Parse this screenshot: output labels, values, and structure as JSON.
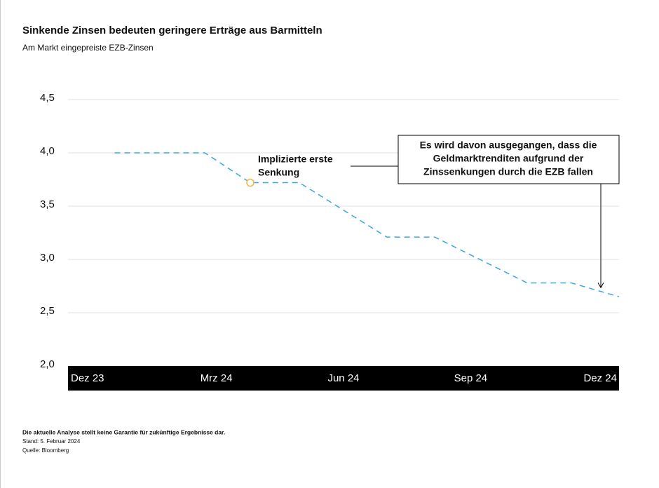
{
  "chart_data": {
    "type": "line",
    "title": "Sinkende Zinsen bedeuten geringere Erträge aus Barmitteln",
    "subtitle": "Am Markt eingepreiste EZB-Zinsen",
    "series": [
      {
        "name": "EZB-Zinsen",
        "color": "#3aa6dd",
        "x": [
          0.6,
          2.73,
          3.8,
          4.96,
          7.02,
          8.15,
          10.33,
          11.37,
          12.5
        ],
        "values": [
          4.0,
          4.0,
          3.72,
          3.72,
          3.21,
          3.21,
          2.78,
          2.78,
          2.65
        ]
      }
    ],
    "xlim": [
      -0.5,
      12.5
    ],
    "xticks": [
      {
        "value": 0,
        "label": "Dez 23"
      },
      {
        "value": 3,
        "label": "Mrz 24"
      },
      {
        "value": 6,
        "label": "Jun 24"
      },
      {
        "value": 9,
        "label": "Sep 24"
      },
      {
        "value": 12,
        "label": "Dez 24"
      }
    ],
    "ylim": [
      2.0,
      4.5
    ],
    "yticks": [
      {
        "value": 2.0,
        "label": "2,0"
      },
      {
        "value": 2.5,
        "label": "2,5"
      },
      {
        "value": 3.0,
        "label": "3,0"
      },
      {
        "value": 3.5,
        "label": "3,5"
      },
      {
        "value": 4.0,
        "label": "4,0"
      },
      {
        "value": 4.5,
        "label": "4,5"
      }
    ],
    "grid": true,
    "annotations": [
      {
        "text": [
          "Implizierte erste",
          "Senkung"
        ],
        "x": 3.8,
        "y": 3.72
      },
      {
        "text": [
          "Es wird davon ausgegangen, dass die",
          "Geldmarktrenditen aufgrund der",
          "Zinssenkungen durch die EZB fallen"
        ],
        "x": 12.07,
        "y": 2.735
      }
    ],
    "footnotes": [
      "Die aktuelle Analyse stellt keine Garantie für zukünftige Ergebnisse dar.",
      "Stand: 5. Februar 2024",
      "Quelle: Bloomberg"
    ]
  }
}
